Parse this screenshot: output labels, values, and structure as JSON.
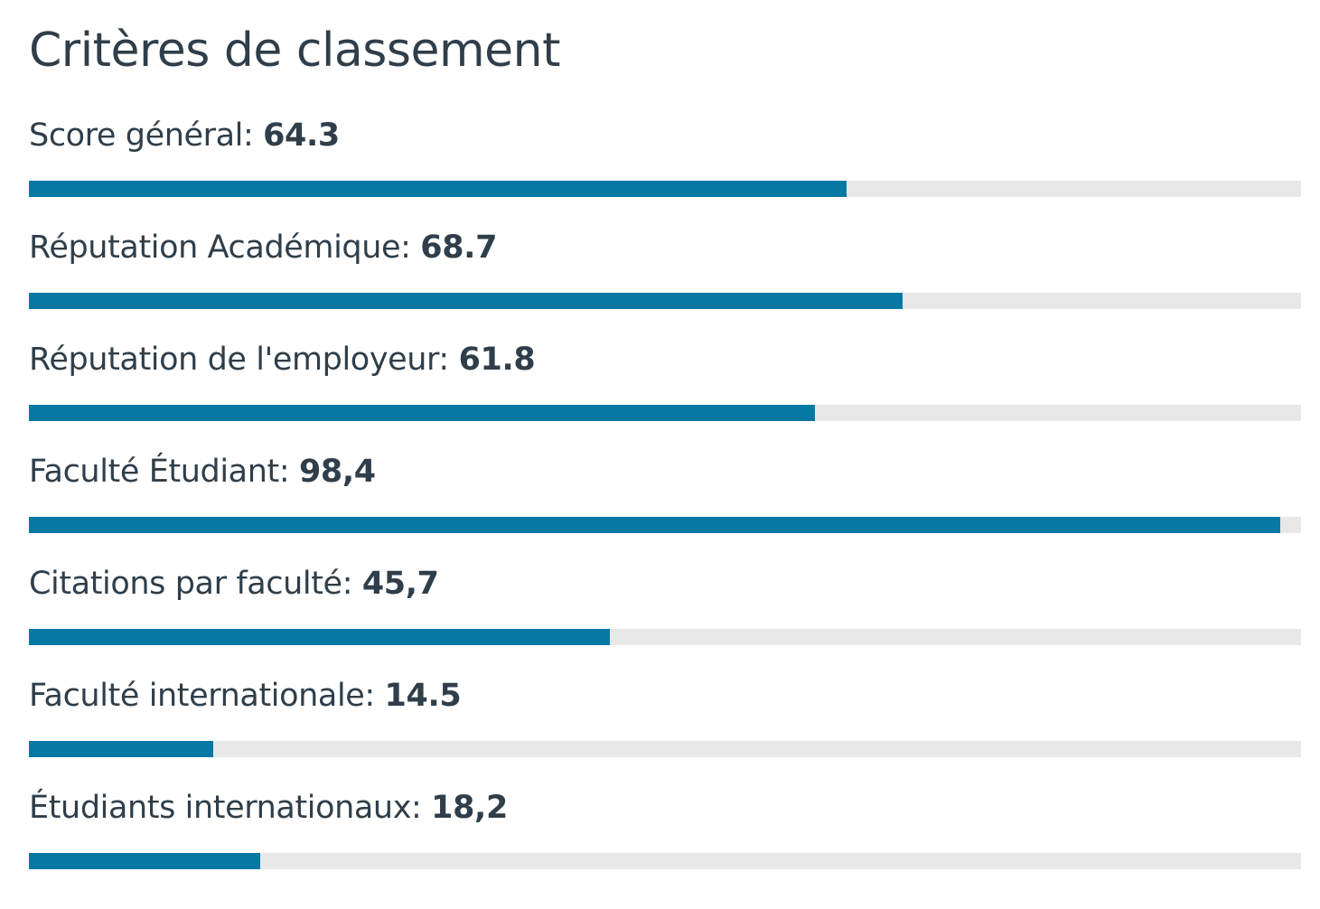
{
  "title": "Critères de classement",
  "criteria": [
    {
      "label": "Score général:",
      "value_text": "64.3",
      "value": 64.3
    },
    {
      "label": "Réputation Académique:",
      "value_text": "68.7",
      "value": 68.7
    },
    {
      "label": "Réputation de l'employeur:",
      "value_text": "61.8",
      "value": 61.8
    },
    {
      "label": "Faculté Étudiant:",
      "value_text": "98,4",
      "value": 98.4
    },
    {
      "label": "Citations par faculté:",
      "value_text": "45,7",
      "value": 45.7
    },
    {
      "label": "Faculté internationale:",
      "value_text": "14.5",
      "value": 14.5
    },
    {
      "label": "Étudiants internationaux:",
      "value_text": "18,2",
      "value": 18.2
    }
  ],
  "colors": {
    "bar_fill": "#0778a3",
    "bar_track": "#e8e8e8",
    "text": "#2f3e4a"
  }
}
